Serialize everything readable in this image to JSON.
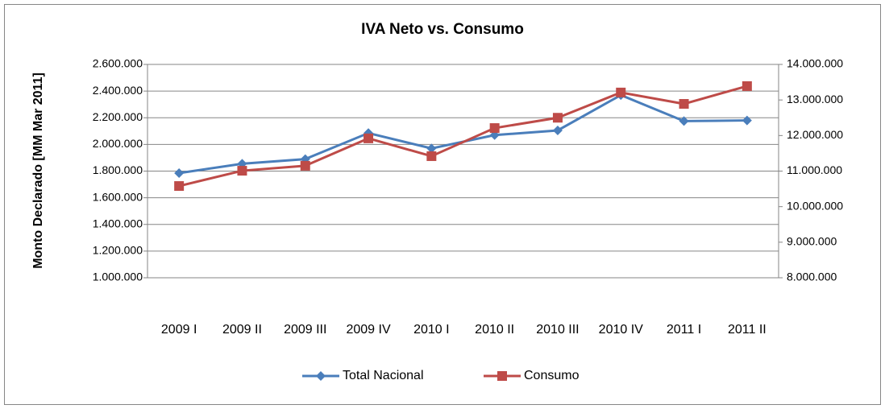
{
  "chart_data": {
    "type": "line",
    "title": "IVA Neto vs. Consumo",
    "y_label": "Monto Declarado  [MM  Mar  2011]",
    "categories": [
      "2009 I",
      "2009 II",
      "2009 III",
      "2009 IV",
      "2010 I",
      "2010 II",
      "2010 III",
      "2010 IV",
      "2011 I",
      "2011 II"
    ],
    "series": [
      {
        "name": "Total Nacional",
        "color": "#4a7ebb",
        "marker": "diamond",
        "axis": "y",
        "values": [
          1785000,
          1855000,
          1890000,
          2085000,
          1970000,
          2070000,
          2105000,
          2370000,
          2175000,
          2180000
        ]
      },
      {
        "name": "Consumo",
        "color": "#be4b48",
        "marker": "square",
        "axis": "y2",
        "values": [
          10580000,
          11010000,
          11150000,
          11920000,
          11420000,
          12210000,
          12500000,
          13210000,
          12890000,
          13390000
        ]
      }
    ],
    "ylim": [
      1000000,
      2600000
    ],
    "yticks": [
      {
        "value": 1000000,
        "label": "1.000.000"
      },
      {
        "value": 1200000,
        "label": "1.200.000"
      },
      {
        "value": 1400000,
        "label": "1.400.000"
      },
      {
        "value": 1600000,
        "label": "1.600.000"
      },
      {
        "value": 1800000,
        "label": "1.800.000"
      },
      {
        "value": 2000000,
        "label": "2.000.000"
      },
      {
        "value": 2200000,
        "label": "2.200.000"
      },
      {
        "value": 2400000,
        "label": "2.400.000"
      },
      {
        "value": 2600000,
        "label": "2.600.000"
      }
    ],
    "y2lim": [
      8000000,
      14000000
    ],
    "y2ticks": [
      {
        "value": 8000000,
        "label": "8.000.000"
      },
      {
        "value": 9000000,
        "label": "9.000.000"
      },
      {
        "value": 10000000,
        "label": "10.000.000"
      },
      {
        "value": 11000000,
        "label": "11.000.000"
      },
      {
        "value": 12000000,
        "label": "12.000.000"
      },
      {
        "value": 13000000,
        "label": "13.000.000"
      },
      {
        "value": 14000000,
        "label": "14.000.000"
      }
    ],
    "grid": true,
    "legend": "bottom"
  }
}
